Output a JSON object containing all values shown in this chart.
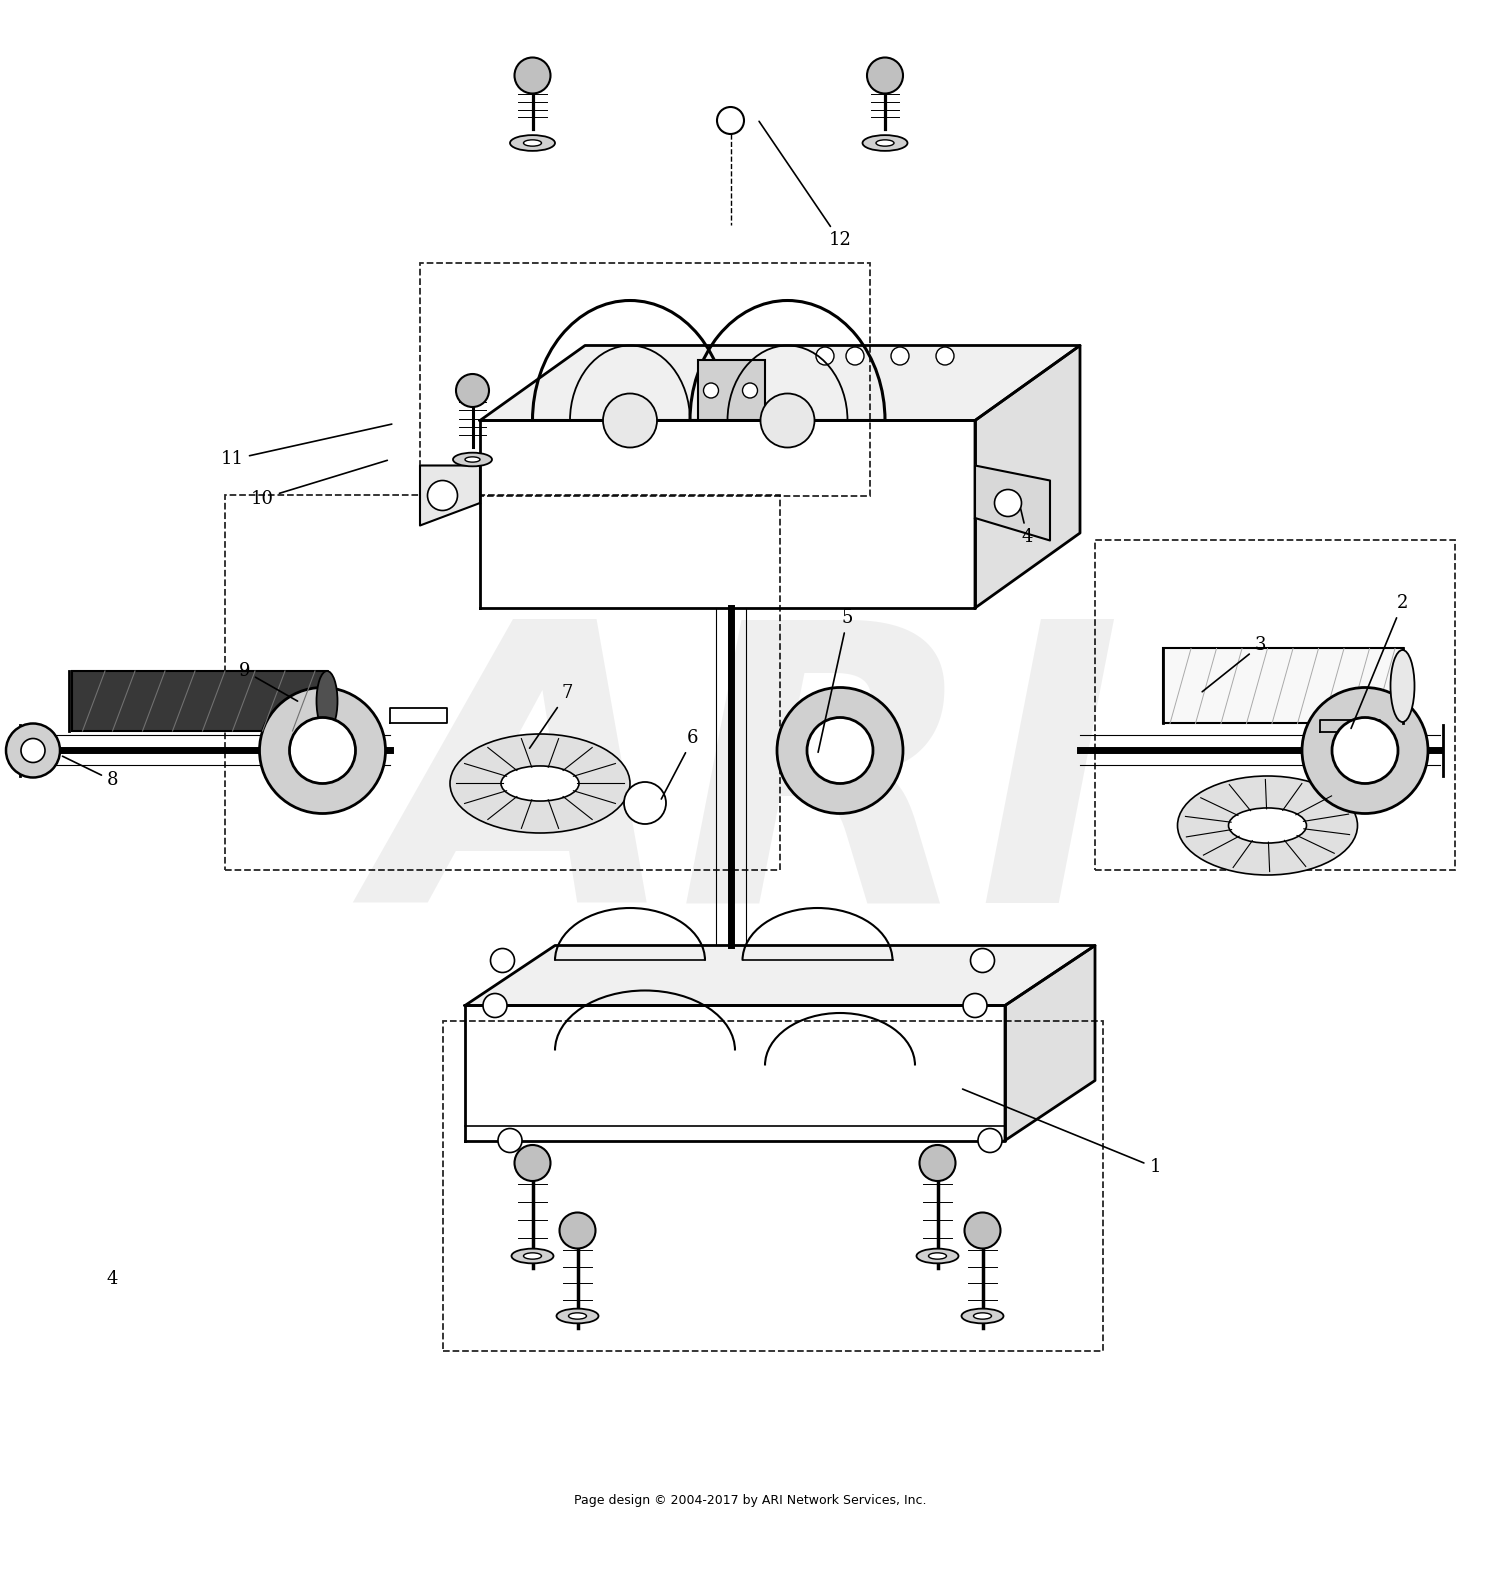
{
  "footer": "Page design © 2004-2017 by ARI Network Services, Inc.",
  "footer_fontsize": 9,
  "bg_color": "#ffffff",
  "watermark_text": "ARI",
  "watermark_alpha": 0.12,
  "watermark_fontsize": 280,
  "fig_width": 15.0,
  "fig_height": 15.91
}
